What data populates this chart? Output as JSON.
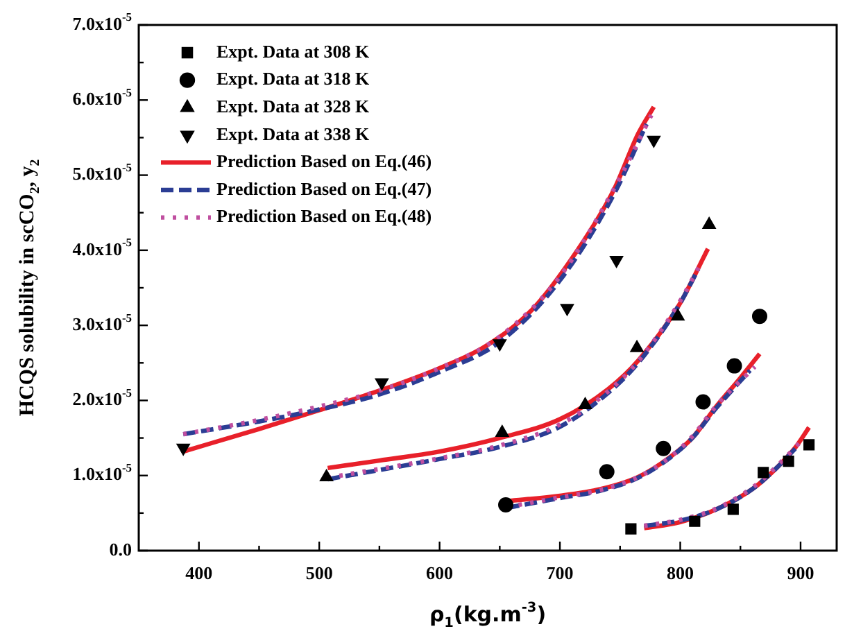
{
  "chart_data": {
    "type": "scatter",
    "xlabel": "ρ$_{1}$(kg.m$^{-3}$)",
    "ylabel": "HCQS solubility in scCO$_{2}$, y$_{2}$",
    "xlim": [
      350,
      930
    ],
    "ylim": [
      0,
      7e-05
    ],
    "xticks": [
      400,
      {
        "value": 450,
        "label": null
      },
      500,
      {
        "value": 550,
        "label": null
      },
      600,
      {
        "value": 650,
        "label": null
      },
      700,
      {
        "value": 750,
        "label": null
      },
      800,
      {
        "value": 850,
        "label": null
      },
      900
    ],
    "yticks": [
      {
        "value": 0,
        "label": "0.0"
      },
      {
        "value": 5e-06,
        "label": null
      },
      {
        "value": 1e-05,
        "label": "1.0x10$^{-5}$"
      },
      {
        "value": 1.5e-05,
        "label": null
      },
      {
        "value": 2e-05,
        "label": "2.0x10$^{-5}$"
      },
      {
        "value": 2.5e-05,
        "label": null
      },
      {
        "value": 3e-05,
        "label": "3.0x10$^{-5}$"
      },
      {
        "value": 3.5e-05,
        "label": null
      },
      {
        "value": 4e-05,
        "label": "4.0x10$^{-5}$"
      },
      {
        "value": 4.5e-05,
        "label": null
      },
      {
        "value": 5e-05,
        "label": "5.0x10$^{-5}$"
      },
      {
        "value": 5.5e-05,
        "label": null
      },
      {
        "value": 6e-05,
        "label": "6.0x10$^{-5}$"
      },
      {
        "value": 6.5e-05,
        "label": null
      },
      {
        "value": 7e-05,
        "label": "7.0x10$^{-5}$"
      }
    ],
    "grid": false,
    "legend": "top left",
    "series": [
      {
        "name": "Expt. Data at 308 K",
        "type": "scatter",
        "marker": "square",
        "color": "#000000",
        "x": [
          759,
          812,
          844,
          869,
          890,
          907
        ],
        "values": [
          2.9e-06,
          3.9e-06,
          5.5e-06,
          1.04e-05,
          1.19e-05,
          1.41e-05
        ]
      },
      {
        "name": "Expt. Data at 318 K",
        "type": "scatter",
        "marker": "circle",
        "color": "#000000",
        "x": [
          655,
          739,
          786,
          819,
          845,
          866
        ],
        "values": [
          6.1e-06,
          1.05e-05,
          1.36e-05,
          1.98e-05,
          2.46e-05,
          3.12e-05
        ]
      },
      {
        "name": "Expt. Data at 328 K",
        "type": "scatter",
        "marker": "triangle",
        "color": "#000000",
        "x": [
          506,
          652,
          721,
          764,
          798,
          824
        ],
        "values": [
          9.8e-06,
          1.57e-05,
          1.94e-05,
          2.7e-05,
          3.12e-05,
          4.34e-05
        ]
      },
      {
        "name": "Expt. Data at 338 K",
        "type": "scatter",
        "marker": "triangle-down",
        "color": "#000000",
        "x": [
          387,
          552,
          650,
          706,
          747,
          778
        ],
        "values": [
          1.37e-05,
          2.24e-05,
          2.76e-05,
          3.23e-05,
          3.87e-05,
          5.47e-05
        ]
      },
      {
        "name": "Prediction Based on Eq.(46)",
        "type": "line",
        "line_style": "solid",
        "color": "#e8202a",
        "x": [
          387,
          450,
          500,
          550,
          600,
          638,
          677,
          715,
          745,
          765,
          778
        ],
        "values": [
          1.32e-05,
          1.62e-05,
          1.87e-05,
          2.13e-05,
          2.43e-05,
          2.72e-05,
          3.21e-05,
          4.01e-05,
          4.81e-05,
          5.55e-05,
          5.91e-05
        ]
      },
      {
        "type": "line",
        "line_style": "solid",
        "color": "#e8202a",
        "x": [
          507,
          550,
          600,
          650,
          700,
          740,
          765,
          799,
          823
        ],
        "values": [
          1.1e-05,
          1.2e-05,
          1.32e-05,
          1.5e-05,
          1.75e-05,
          2.15e-05,
          2.53e-05,
          3.27e-05,
          4.02e-05
        ]
      },
      {
        "type": "line",
        "line_style": "solid",
        "color": "#e8202a",
        "x": [
          656,
          700,
          734,
          765,
          791,
          810,
          830,
          850,
          866
        ],
        "values": [
          6.6e-06,
          7.3e-06,
          8.2e-06,
          9.8e-06,
          1.24e-05,
          1.5e-05,
          1.92e-05,
          2.3e-05,
          2.62e-05
        ]
      },
      {
        "type": "line",
        "line_style": "solid",
        "color": "#e8202a",
        "x": [
          770,
          800,
          830,
          860,
          880,
          896,
          907
        ],
        "values": [
          3e-06,
          3.8e-06,
          5.5e-06,
          8.2e-06,
          1.1e-05,
          1.38e-05,
          1.64e-05
        ]
      },
      {
        "name": "Prediction Based on Eq.(47)",
        "type": "line",
        "line_style": "dashed",
        "color": "#2b3d94",
        "x": [
          387,
          450,
          500,
          550,
          600,
          650,
          700,
          745,
          772
        ],
        "values": [
          1.55e-05,
          1.72e-05,
          1.88e-05,
          2.08e-05,
          2.38e-05,
          2.78e-05,
          3.6e-05,
          4.75e-05,
          5.68e-05
        ]
      },
      {
        "type": "line",
        "line_style": "dashed",
        "color": "#2b3d94",
        "x": [
          507,
          600,
          650,
          700,
          740,
          765,
          799,
          815
        ],
        "values": [
          9.5e-06,
          1.22e-05,
          1.38e-05,
          1.65e-05,
          2.1e-05,
          2.5e-05,
          3.27e-05,
          3.75e-05
        ]
      },
      {
        "type": "line",
        "line_style": "dashed",
        "color": "#2b3d94",
        "x": [
          656,
          700,
          734,
          765,
          791,
          810,
          830,
          858
        ],
        "values": [
          5.7e-06,
          7e-06,
          8e-06,
          9.7e-06,
          1.23e-05,
          1.5e-05,
          1.9e-05,
          2.4e-05
        ]
      },
      {
        "type": "line",
        "line_style": "dashed",
        "color": "#2b3d94",
        "x": [
          770,
          800,
          830,
          860,
          880,
          898
        ],
        "values": [
          3.3e-06,
          4e-06,
          5.5e-06,
          8.2e-06,
          1.1e-05,
          1.4e-05
        ]
      },
      {
        "name": "Prediction Based on Eq.(48)",
        "type": "line",
        "line_style": "dotted",
        "color": "#c04fa0",
        "x": [
          387,
          450,
          500,
          550,
          600,
          650,
          700,
          745,
          776
        ],
        "values": [
          1.55e-05,
          1.74e-05,
          1.92e-05,
          2.13e-05,
          2.43e-05,
          2.85e-05,
          3.65e-05,
          4.82e-05,
          5.8e-05
        ]
      },
      {
        "type": "line",
        "line_style": "dotted",
        "color": "#c04fa0",
        "x": [
          507,
          600,
          650,
          700,
          740,
          765,
          799,
          818
        ],
        "values": [
          9.7e-06,
          1.23e-05,
          1.4e-05,
          1.68e-05,
          2.12e-05,
          2.52e-05,
          3.3e-05,
          3.85e-05
        ]
      },
      {
        "type": "line",
        "line_style": "dotted",
        "color": "#c04fa0",
        "x": [
          656,
          700,
          734,
          765,
          791,
          810,
          830,
          862
        ],
        "values": [
          5.8e-06,
          7.1e-06,
          8.1e-06,
          9.8e-06,
          1.24e-05,
          1.52e-05,
          1.93e-05,
          2.45e-05
        ]
      },
      {
        "type": "line",
        "line_style": "dotted",
        "color": "#c04fa0",
        "x": [
          770,
          800,
          830,
          860,
          880,
          900
        ],
        "values": [
          3.3e-06,
          4.1e-06,
          5.6e-06,
          8.4e-06,
          1.12e-05,
          1.45e-05
        ]
      }
    ]
  }
}
